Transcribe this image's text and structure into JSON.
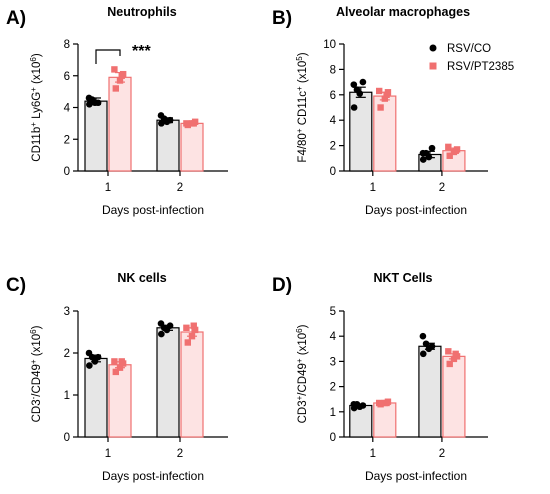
{
  "figure": {
    "legend": [
      {
        "label": "RSV/CO",
        "color": "#000000",
        "fill": "#e6e6e6",
        "marker": "circle"
      },
      {
        "label": "RSV/PT2385",
        "color": "#f07070",
        "fill": "#fde3e3",
        "marker": "square"
      }
    ]
  },
  "chart_data": [
    {
      "panel": "A)",
      "type": "bar",
      "title": "Neutrophils",
      "ylabel_parts": [
        [
          "CD11b",
          ""
        ],
        [
          "+",
          "sup"
        ],
        [
          " Ly6G",
          ""
        ],
        [
          "+",
          "sup"
        ],
        [
          " (x10",
          ""
        ],
        [
          "6",
          "sup"
        ],
        [
          ")",
          ""
        ]
      ],
      "xlabel": "Days post-infection",
      "categories": [
        "1",
        "2"
      ],
      "ylim": [
        0,
        8
      ],
      "yticks": [
        0,
        2,
        4,
        6,
        8
      ],
      "series": [
        {
          "name": "RSV/CO",
          "values": [
            4.4,
            3.2
          ],
          "errors": [
            0.2,
            0.15
          ],
          "points": [
            [
              4.2,
              4.3,
              4.5,
              4.6,
              4.3
            ],
            [
              3.0,
              3.1,
              3.3,
              3.5,
              3.2
            ]
          ]
        },
        {
          "name": "RSV/PT2385",
          "values": [
            5.9,
            3.0
          ],
          "errors": [
            0.3,
            0.05
          ],
          "points": [
            [
              5.2,
              5.7,
              6.1,
              6.4,
              6.0
            ],
            [
              2.9,
              3.0,
              3.1,
              3.0,
              3.0
            ]
          ]
        }
      ],
      "annotation": {
        "text": "***",
        "category": 0
      }
    },
    {
      "panel": "B)",
      "type": "bar",
      "title": "Alveolar macrophages",
      "ylabel_parts": [
        [
          "F4/80",
          ""
        ],
        [
          "+",
          "sup"
        ],
        [
          " CD11c",
          ""
        ],
        [
          "+",
          "sup"
        ],
        [
          " (x10",
          ""
        ],
        [
          "5",
          "sup"
        ],
        [
          ")",
          ""
        ]
      ],
      "xlabel": "Days post-infection",
      "categories": [
        "1",
        "2"
      ],
      "ylim": [
        0,
        10
      ],
      "yticks": [
        0,
        2,
        4,
        6,
        8,
        10
      ],
      "series": [
        {
          "name": "RSV/CO",
          "values": [
            6.2,
            1.3
          ],
          "errors": [
            0.4,
            0.25
          ],
          "points": [
            [
              5.0,
              6.1,
              6.4,
              6.8,
              7.0
            ],
            [
              0.9,
              1.1,
              1.4,
              1.4,
              1.8
            ]
          ]
        },
        {
          "name": "RSV/PT2385",
          "values": [
            5.9,
            1.6
          ],
          "errors": [
            0.3,
            0.2
          ],
          "points": [
            [
              5.0,
              5.7,
              6.2,
              6.3,
              6.0
            ],
            [
              1.2,
              1.5,
              1.7,
              1.9,
              1.6
            ]
          ]
        }
      ]
    },
    {
      "panel": "C)",
      "type": "bar",
      "title": "NK cells",
      "ylabel_parts": [
        [
          "CD3",
          ""
        ],
        [
          "-",
          "sup"
        ],
        [
          "/CD49",
          ""
        ],
        [
          "+",
          "sup"
        ],
        [
          " (x10",
          ""
        ],
        [
          "6",
          "sup"
        ],
        [
          ")",
          ""
        ]
      ],
      "xlabel": "Days post-infection",
      "categories": [
        "1",
        "2"
      ],
      "ylim": [
        0,
        3
      ],
      "yticks": [
        0,
        1,
        2,
        3
      ],
      "series": [
        {
          "name": "RSV/CO",
          "values": [
            1.87,
            2.6
          ],
          "errors": [
            0.08,
            0.06
          ],
          "points": [
            [
              1.7,
              1.8,
              1.9,
              2.0,
              1.9
            ],
            [
              2.45,
              2.55,
              2.6,
              2.7,
              2.65
            ]
          ]
        },
        {
          "name": "RSV/PT2385",
          "values": [
            1.72,
            2.5
          ],
          "errors": [
            0.07,
            0.1
          ],
          "points": [
            [
              1.55,
              1.65,
              1.75,
              1.8,
              1.8
            ],
            [
              2.25,
              2.4,
              2.55,
              2.6,
              2.65
            ]
          ]
        }
      ]
    },
    {
      "panel": "D)",
      "type": "bar",
      "title": "NKT Cells",
      "ylabel_parts": [
        [
          "CD3",
          ""
        ],
        [
          "+",
          "sup"
        ],
        [
          "/CD49",
          ""
        ],
        [
          "+",
          "sup"
        ],
        [
          " (x10",
          ""
        ],
        [
          "6",
          "sup"
        ],
        [
          ")",
          ""
        ]
      ],
      "xlabel": "Days post-infection",
      "categories": [
        "1",
        "2"
      ],
      "ylim": [
        0,
        5
      ],
      "yticks": [
        0,
        1,
        2,
        3,
        4,
        5
      ],
      "series": [
        {
          "name": "RSV/CO",
          "values": [
            1.25,
            3.6
          ],
          "errors": [
            0.05,
            0.12
          ],
          "points": [
            [
              1.15,
              1.2,
              1.3,
              1.3,
              1.25
            ],
            [
              3.3,
              3.5,
              3.7,
              4.0,
              3.6
            ]
          ]
        },
        {
          "name": "RSV/PT2385",
          "values": [
            1.35,
            3.2
          ],
          "errors": [
            0.04,
            0.1
          ],
          "points": [
            [
              1.3,
              1.35,
              1.4,
              1.35,
              1.35
            ],
            [
              2.9,
              3.1,
              3.2,
              3.4,
              3.3
            ]
          ]
        }
      ]
    }
  ]
}
